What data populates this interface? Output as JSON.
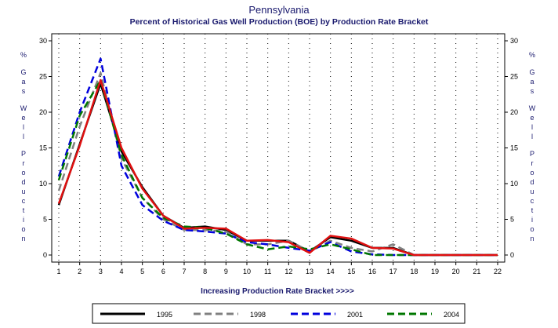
{
  "chart_data": {
    "type": "line",
    "title": "Pennsylvania",
    "subtitle": "Percent of Historical Gas Well Production (BOE) by Production Rate Bracket",
    "xlabel": "Increasing Production Rate Bracket >>>>",
    "ylabel": "% Gas Well Production",
    "x": [
      1,
      2,
      3,
      4,
      5,
      6,
      7,
      8,
      9,
      10,
      11,
      12,
      13,
      14,
      15,
      16,
      17,
      18,
      19,
      20,
      21,
      22
    ],
    "xlim": [
      1,
      22
    ],
    "ylim": [
      0,
      30
    ],
    "yticks": [
      0,
      5,
      10,
      15,
      20,
      25,
      30
    ],
    "grid": true,
    "legend_position": "bottom",
    "series": [
      {
        "name": "1995",
        "color": "#000000",
        "style": "solid",
        "values": [
          7,
          15.5,
          24,
          14.5,
          9.5,
          5.5,
          3.8,
          4,
          3.5,
          2,
          2,
          2,
          0.5,
          2.5,
          2,
          1,
          1,
          0,
          0,
          0,
          0,
          0
        ]
      },
      {
        "name": "1998",
        "color": "#808080",
        "style": "dashed",
        "values": [
          9,
          18,
          25.5,
          13.5,
          8,
          5,
          3.5,
          3.5,
          3.3,
          1.5,
          1.5,
          2,
          0.5,
          2,
          1,
          0.5,
          1.5,
          0,
          0,
          0,
          0,
          0
        ]
      },
      {
        "name": "2001",
        "color": "#0000dd",
        "style": "dashed",
        "values": [
          11,
          20,
          27.5,
          12.5,
          7,
          4.8,
          3.5,
          3.3,
          3,
          1.8,
          1.5,
          1,
          0.6,
          1.8,
          0.5,
          0.1,
          0,
          0,
          0,
          0,
          0,
          0
        ]
      },
      {
        "name": "2004",
        "color": "#007700",
        "style": "dashed",
        "values": [
          10.5,
          19.5,
          24.5,
          14,
          8,
          5.2,
          4,
          3.8,
          3,
          1.5,
          0.8,
          1.2,
          0.8,
          1.5,
          0.8,
          0,
          0,
          0,
          0,
          0,
          0,
          0
        ]
      },
      {
        "name": "",
        "color": "#e01010",
        "style": "solid",
        "values": [
          7.2,
          15.3,
          24.5,
          15,
          9.3,
          5.5,
          3.7,
          3.8,
          3.7,
          2,
          2.1,
          1.8,
          0.3,
          2.7,
          2.3,
          1,
          0.9,
          0,
          0,
          0,
          0,
          0
        ]
      }
    ]
  }
}
